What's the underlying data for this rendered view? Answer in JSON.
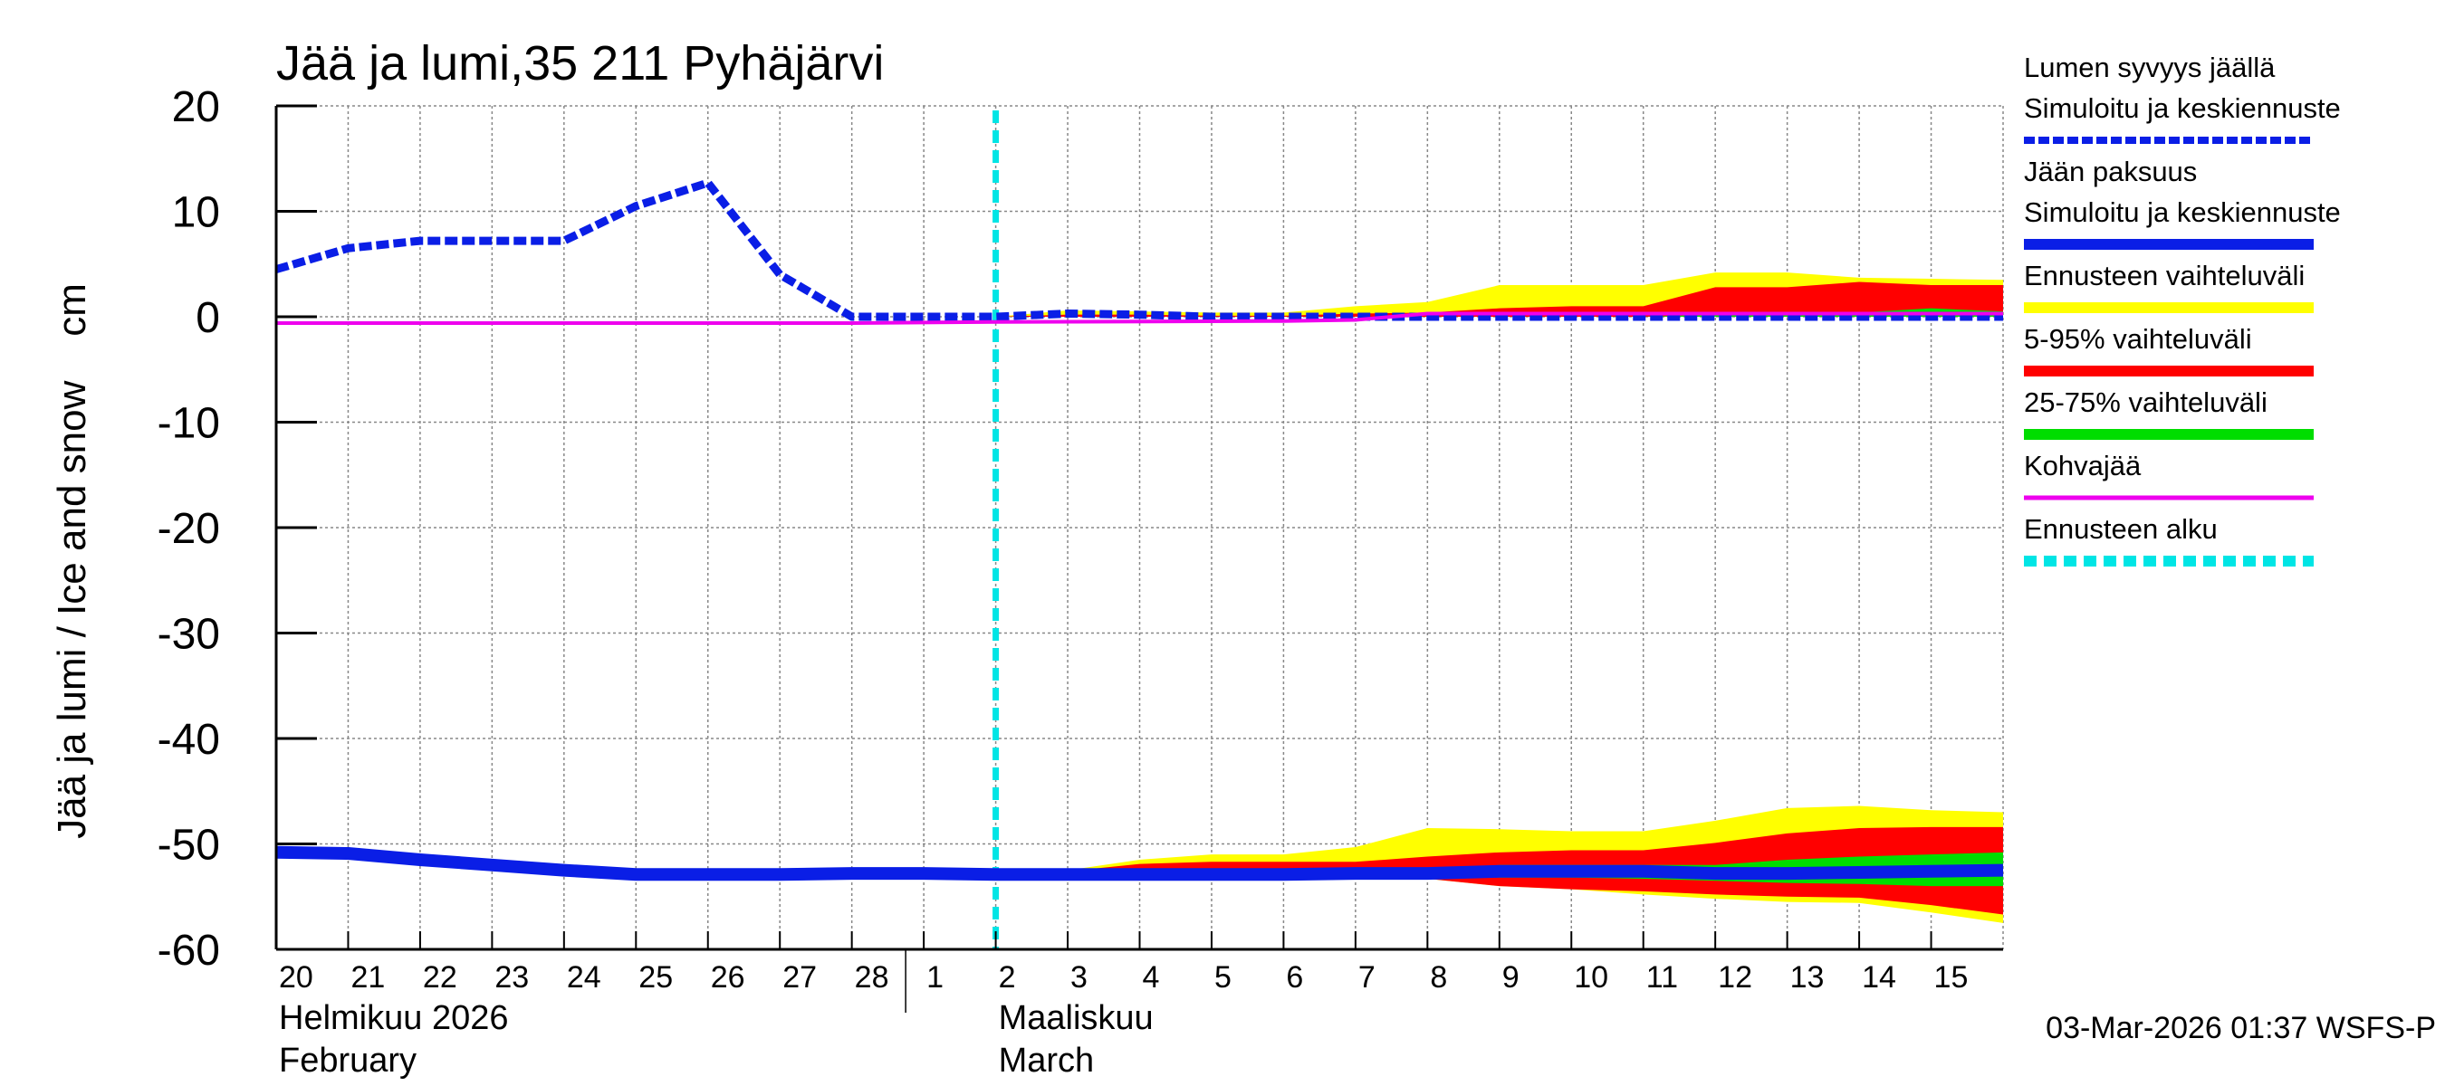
{
  "chart_data": {
    "type": "line",
    "title": "Jää ja lumi,35 211 Pyhäjärvi",
    "ylabel": "Jää ja lumi / Ice and snow    cm",
    "ylim": [
      -60,
      20
    ],
    "yticks": [
      20,
      10,
      0,
      -10,
      -20,
      -30,
      -40,
      -50,
      -60
    ],
    "xlim": [
      0,
      24
    ],
    "grid": true,
    "x_ticks": [
      {
        "x": 0,
        "label": "20"
      },
      {
        "x": 1,
        "label": "21"
      },
      {
        "x": 2,
        "label": "22"
      },
      {
        "x": 3,
        "label": "23"
      },
      {
        "x": 4,
        "label": "24"
      },
      {
        "x": 5,
        "label": "25"
      },
      {
        "x": 6,
        "label": "26"
      },
      {
        "x": 7,
        "label": "27"
      },
      {
        "x": 8,
        "label": "28"
      },
      {
        "x": 9,
        "label": "1"
      },
      {
        "x": 10,
        "label": "2"
      },
      {
        "x": 11,
        "label": "3"
      },
      {
        "x": 12,
        "label": "4"
      },
      {
        "x": 13,
        "label": "5"
      },
      {
        "x": 14,
        "label": "6"
      },
      {
        "x": 15,
        "label": "7"
      },
      {
        "x": 16,
        "label": "8"
      },
      {
        "x": 17,
        "label": "9"
      },
      {
        "x": 18,
        "label": "10"
      },
      {
        "x": 19,
        "label": "11"
      },
      {
        "x": 20,
        "label": "12"
      },
      {
        "x": 21,
        "label": "13"
      },
      {
        "x": 22,
        "label": "14"
      },
      {
        "x": 23,
        "label": "15"
      }
    ],
    "month_labels": [
      {
        "x": 0,
        "fi": "Helmikuu  2026",
        "en": "February"
      },
      {
        "x": 10,
        "fi": "Maaliskuu",
        "en": "March"
      }
    ],
    "month_separator_x": 9,
    "forecast_start_x": 10,
    "series": [
      {
        "name": "Lumen syvyys jäällä Simuloitu ja keskiennuste",
        "style": "dashed",
        "color": "#0a1ee6",
        "x": [
          0,
          1,
          2,
          3,
          4,
          5,
          6,
          7,
          8,
          9,
          10,
          11,
          12,
          13,
          14,
          15,
          16,
          17,
          18,
          19,
          20,
          21,
          22,
          23,
          24
        ],
        "y": [
          4.5,
          6.5,
          7.2,
          7.2,
          7.2,
          10.5,
          12.7,
          4,
          0,
          0,
          0,
          0.3,
          0.2,
          0,
          0,
          0,
          0,
          0,
          0,
          0,
          0,
          0,
          0,
          0,
          0
        ]
      },
      {
        "name": "Jään paksuus Simuloitu ja keskiennuste",
        "style": "solid",
        "color": "#0a1ee6",
        "x": [
          0,
          1,
          2,
          3,
          4,
          5,
          6,
          7,
          8,
          9,
          10,
          11,
          12,
          13,
          14,
          15,
          16,
          17,
          18,
          19,
          20,
          21,
          22,
          23,
          24
        ],
        "y": [
          -50.8,
          -50.9,
          -51.5,
          -52,
          -52.5,
          -52.9,
          -52.9,
          -52.9,
          -52.8,
          -52.8,
          -52.9,
          -52.9,
          -52.9,
          -52.9,
          -52.9,
          -52.8,
          -52.8,
          -52.6,
          -52.6,
          -52.6,
          -52.8,
          -52.8,
          -52.7,
          -52.6,
          -52.5
        ]
      },
      {
        "name": "Kohvajää",
        "style": "solid",
        "color": "#ee00ee",
        "x": [
          0,
          8,
          10,
          14,
          15,
          16,
          17,
          18,
          19,
          20,
          21,
          22,
          23,
          24
        ],
        "y": [
          -0.6,
          -0.6,
          -0.5,
          -0.4,
          -0.3,
          0.3,
          0.3,
          0.3,
          0.3,
          0.3,
          0.3,
          0.3,
          0.3,
          0.3
        ]
      }
    ],
    "bands": [
      {
        "name": "Ennusteen vaihteluväli",
        "color": "#ffff00",
        "group": "snow",
        "x": [
          10,
          11,
          12,
          13,
          14,
          15,
          16,
          17,
          18,
          19,
          20,
          21,
          22,
          23,
          24
        ],
        "upper": [
          0,
          0.6,
          0.5,
          0.4,
          0.4,
          1,
          1.4,
          3,
          3,
          3,
          4.2,
          4.2,
          3.7,
          3.6,
          3.5
        ],
        "lower": [
          0,
          0,
          0,
          0,
          0,
          0,
          0,
          0,
          0,
          0,
          0,
          0,
          0,
          0,
          0
        ]
      },
      {
        "name": "5-95% vaihteluväli",
        "color": "#ff0000",
        "group": "snow",
        "x": [
          10,
          11,
          12,
          13,
          14,
          15,
          16,
          17,
          18,
          19,
          20,
          21,
          22,
          23,
          24
        ],
        "upper": [
          0,
          0.2,
          0.2,
          0.1,
          0.1,
          0.3,
          0.4,
          0.8,
          1,
          1,
          2.8,
          2.8,
          3.3,
          3,
          3
        ],
        "lower": [
          0,
          0,
          0,
          0,
          0,
          0,
          0,
          0,
          0,
          0,
          0,
          0,
          0,
          0,
          0
        ]
      },
      {
        "name": "25-75% vaihteluväli",
        "color": "#00dd00",
        "group": "snow",
        "x": [
          19,
          20,
          21,
          22,
          23,
          24
        ],
        "upper": [
          0,
          0.2,
          0.3,
          0.4,
          0.8,
          0.5
        ],
        "lower": [
          0,
          0,
          0,
          0,
          0,
          0
        ]
      },
      {
        "name": "Ennusteen vaihteluväli",
        "color": "#ffff00",
        "group": "ice",
        "x": [
          10,
          11,
          12,
          13,
          14,
          15,
          16,
          17,
          18,
          19,
          20,
          21,
          22,
          23,
          24
        ],
        "upper": [
          -52.9,
          -52.5,
          -51.5,
          -51,
          -51,
          -50.3,
          -48.5,
          -48.6,
          -48.8,
          -48.8,
          -47.8,
          -46.6,
          -46.4,
          -46.8,
          -47
        ],
        "lower": [
          -52.9,
          -53,
          -53,
          -53,
          -53,
          -53.1,
          -53.3,
          -54,
          -54.3,
          -54.8,
          -55.2,
          -55.5,
          -55.6,
          -56.5,
          -57.5
        ]
      },
      {
        "name": "5-95% vaihteluväli",
        "color": "#ff0000",
        "group": "ice",
        "x": [
          10,
          11,
          12,
          13,
          14,
          15,
          16,
          17,
          18,
          19,
          20,
          21,
          22,
          23,
          24
        ],
        "upper": [
          -52.9,
          -52.6,
          -51.9,
          -51.7,
          -51.7,
          -51.7,
          -51.2,
          -50.8,
          -50.6,
          -50.6,
          -49.9,
          -49,
          -48.5,
          -48.4,
          -48.4
        ],
        "lower": [
          -52.9,
          -52.9,
          -52.9,
          -52.9,
          -53,
          -53.1,
          -53.3,
          -54,
          -54.3,
          -54.5,
          -54.8,
          -55,
          -55.1,
          -55.8,
          -56.7
        ]
      },
      {
        "name": "25-75% vaihteluväli",
        "color": "#00dd00",
        "group": "ice",
        "x": [
          15,
          16,
          17,
          18,
          19,
          20,
          21,
          22,
          23,
          24
        ],
        "upper": [
          -52.5,
          -52.4,
          -52,
          -52,
          -52,
          -52,
          -51.5,
          -51.2,
          -51,
          -50.8
        ],
        "lower": [
          -52.9,
          -53,
          -53.2,
          -53.2,
          -53.3,
          -53.5,
          -53.7,
          -53.8,
          -54,
          -54
        ]
      }
    ],
    "legend": {
      "position": "right",
      "entries": [
        {
          "label_lines": [
            "Lumen syvyys jäällä",
            "Simuloitu ja keskiennuste"
          ],
          "color": "#0a1ee6",
          "style": "dashed"
        },
        {
          "label_lines": [
            "Jään paksuus",
            "Simuloitu ja keskiennuste"
          ],
          "color": "#0a1ee6",
          "style": "solid"
        },
        {
          "label_lines": [
            "Ennusteen vaihteluväli"
          ],
          "color": "#ffff00",
          "style": "solid"
        },
        {
          "label_lines": [
            "5-95% vaihteluväli"
          ],
          "color": "#ff0000",
          "style": "solid"
        },
        {
          "label_lines": [
            "25-75% vaihteluväli"
          ],
          "color": "#00dd00",
          "style": "solid"
        },
        {
          "label_lines": [
            "Kohvajää"
          ],
          "color": "#ee00ee",
          "style": "solid"
        },
        {
          "label_lines": [
            "Ennusteen alku"
          ],
          "color": "#00e5e5",
          "style": "dashed"
        }
      ]
    },
    "footer": "03-Mar-2026 01:37 WSFS-P",
    "forecast_line_color": "#00e5e5"
  }
}
